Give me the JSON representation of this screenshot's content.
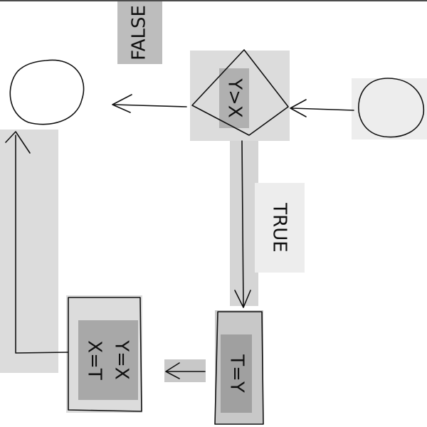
{
  "nodes": [
    {
      "id": "condition",
      "label": "Y>X"
    },
    {
      "id": "temp",
      "label": "T=Y"
    },
    {
      "id": "swap",
      "label": [
        "Y=X",
        "X=T"
      ]
    }
  ],
  "edges": [
    {
      "from": "condition",
      "to": "end",
      "label": "FALSE"
    },
    {
      "from": "condition",
      "to": "temp",
      "label": "TRUE"
    }
  ]
}
